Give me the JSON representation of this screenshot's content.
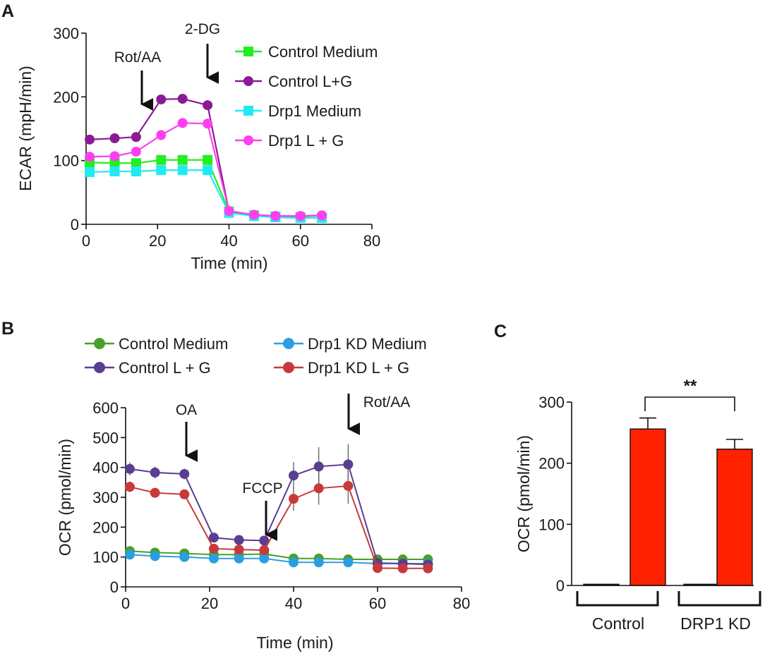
{
  "figure": {
    "panels": {
      "a": "A",
      "b": "B",
      "c": "C"
    }
  },
  "chart_data": [
    {
      "id": "A",
      "type": "line",
      "title": "",
      "xlabel": "Time (min)",
      "ylabel": "ECAR (mpH/min)",
      "xlim": [
        0,
        80
      ],
      "ylim": [
        0,
        300
      ],
      "xticks": [
        "0",
        "20",
        "40",
        "60",
        "80"
      ],
      "yticks": [
        "0",
        "100",
        "200",
        "300"
      ],
      "grid": false,
      "legend_position": "top-right",
      "annotations": [
        {
          "label": "Rot/AA",
          "x": 15,
          "y": 180
        },
        {
          "label": "2-DG",
          "x": 34,
          "y": 225
        }
      ],
      "x": [
        1,
        8,
        14,
        21,
        27,
        34,
        40,
        47,
        53,
        60,
        66
      ],
      "series": [
        {
          "name": "Control Medium",
          "marker": "square",
          "color": "#22ee22",
          "values": [
            97,
            96,
            96,
            101,
            101,
            101,
            20,
            14,
            12,
            11,
            10
          ]
        },
        {
          "name": "Control L+G",
          "marker": "circle",
          "color": "#8b1a94",
          "values": [
            133,
            135,
            137,
            196,
            197,
            187,
            20,
            15,
            13,
            13,
            14
          ]
        },
        {
          "name": "Drp1 Medium",
          "marker": "square",
          "color": "#22eaf2",
          "values": [
            82,
            83,
            83,
            85,
            85,
            85,
            18,
            13,
            11,
            10,
            10
          ]
        },
        {
          "name": "Drp1 L + G",
          "marker": "circle",
          "color": "#ff3ef0",
          "values": [
            106,
            107,
            114,
            140,
            159,
            158,
            21,
            15,
            13,
            13,
            14
          ]
        }
      ]
    },
    {
      "id": "B",
      "type": "line",
      "title": "",
      "xlabel": "Time (min)",
      "ylabel": "OCR (pmol/min)",
      "xlim": [
        0,
        80
      ],
      "ylim": [
        0,
        600
      ],
      "xticks": [
        "0",
        "20",
        "40",
        "60",
        "80"
      ],
      "yticks": [
        "0",
        "100",
        "200",
        "300",
        "400",
        "500",
        "600"
      ],
      "grid": false,
      "legend_position": "top",
      "annotations": [
        {
          "label": "OA",
          "x": 14,
          "y": 495
        },
        {
          "label": "FCCP",
          "x": 33,
          "y": 355
        },
        {
          "label": "Rot/AA",
          "x": 53,
          "y": 570
        }
      ],
      "x": [
        1,
        7,
        14,
        21,
        27,
        33,
        40,
        46,
        53,
        60,
        66,
        72
      ],
      "series": [
        {
          "name": "Control Medium",
          "color": "#49a02a",
          "marker": "circle",
          "values": [
            120,
            115,
            112,
            108,
            108,
            110,
            95,
            95,
            92,
            92,
            92,
            92
          ],
          "errors": [
            10,
            8,
            8,
            6,
            6,
            6,
            8,
            8,
            8,
            8,
            8,
            8
          ]
        },
        {
          "name": "Drp1 KD Medium",
          "color": "#2a9fe0",
          "marker": "circle",
          "values": [
            108,
            103,
            100,
            95,
            95,
            95,
            82,
            82,
            82,
            78,
            78,
            78
          ],
          "errors": [
            8,
            8,
            8,
            6,
            6,
            6,
            6,
            6,
            6,
            6,
            6,
            6
          ]
        },
        {
          "name": "Control L + G",
          "color": "#5a3e92",
          "marker": "circle",
          "values": [
            395,
            383,
            378,
            165,
            157,
            155,
            373,
            403,
            410,
            80,
            78,
            75
          ],
          "errors": [
            22,
            20,
            18,
            10,
            8,
            8,
            45,
            65,
            68,
            8,
            8,
            8
          ]
        },
        {
          "name": "Drp1 KD L + G",
          "color": "#c83a3a",
          "marker": "circle",
          "values": [
            335,
            315,
            310,
            128,
            125,
            123,
            295,
            330,
            338,
            63,
            62,
            62
          ],
          "errors": [
            18,
            15,
            15,
            8,
            8,
            8,
            40,
            55,
            60,
            6,
            6,
            6
          ]
        }
      ]
    },
    {
      "id": "C",
      "type": "bar",
      "title": "",
      "xlabel": "",
      "ylabel": "OCR (pmol/min)",
      "ylim": [
        0,
        300
      ],
      "yticks": [
        "0",
        "100",
        "200",
        "300"
      ],
      "grid": false,
      "groups": [
        "Control",
        "DRP1 KD"
      ],
      "bars": [
        {
          "group": "Control",
          "value": 2,
          "error": 0
        },
        {
          "group": "Control",
          "value": 256,
          "error": 18
        },
        {
          "group": "DRP1 KD",
          "value": 2,
          "error": 0
        },
        {
          "group": "DRP1 KD",
          "value": 223,
          "error": 16
        }
      ],
      "bar_color": "#ff2200",
      "significance": "**"
    }
  ]
}
